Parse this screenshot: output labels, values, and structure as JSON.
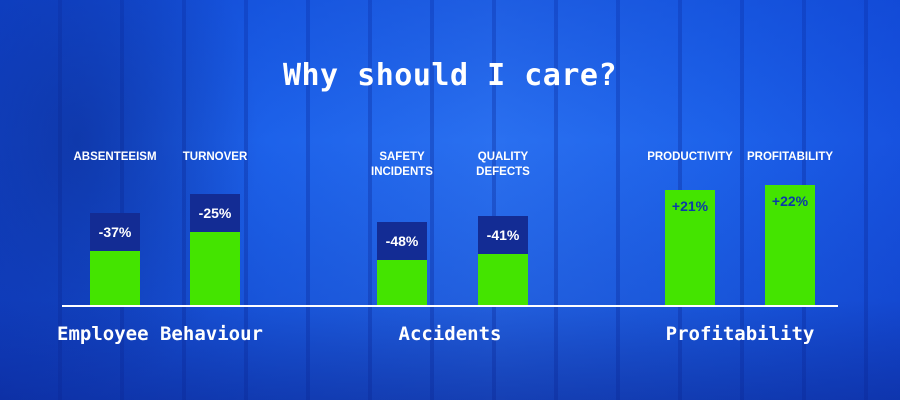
{
  "title": "Why should I care?",
  "colors": {
    "positive_bar": "#44e400",
    "negative_bar": "#132c94",
    "background": "#1a5ee8",
    "text": "#ffffff"
  },
  "chart_data": {
    "type": "bar",
    "title": "Why should I care?",
    "categories": [
      "ABSENTEEISM",
      "TURNOVER",
      "SAFETY INCIDENTS",
      "QUALITY DEFECTS",
      "PRODUCTIVITY",
      "PROFITABILITY"
    ],
    "values": [
      -37,
      -25,
      -48,
      -41,
      21,
      22
    ],
    "value_labels": [
      "-37%",
      "-25%",
      "-48%",
      "-41%",
      "+21%",
      "+22%"
    ],
    "category_lines": [
      [
        "ABSENTEEISM"
      ],
      [
        "TURNOVER"
      ],
      [
        "SAFETY",
        "INCIDENTS"
      ],
      [
        "QUALITY",
        "DEFECTS"
      ],
      [
        "PRODUCTIVITY"
      ],
      [
        "PROFITABILITY"
      ]
    ],
    "groups": [
      {
        "name": "Employee Behaviour",
        "categories": [
          "ABSENTEEISM",
          "TURNOVER"
        ]
      },
      {
        "name": "Accidents",
        "categories": [
          "SAFETY INCIDENTS",
          "QUALITY DEFECTS"
        ]
      },
      {
        "name": "Profitability",
        "categories": [
          "PRODUCTIVITY",
          "PROFITABILITY"
        ]
      }
    ],
    "unit": "%",
    "xlabel": "",
    "ylabel": "",
    "grid": false,
    "legend": "none"
  }
}
